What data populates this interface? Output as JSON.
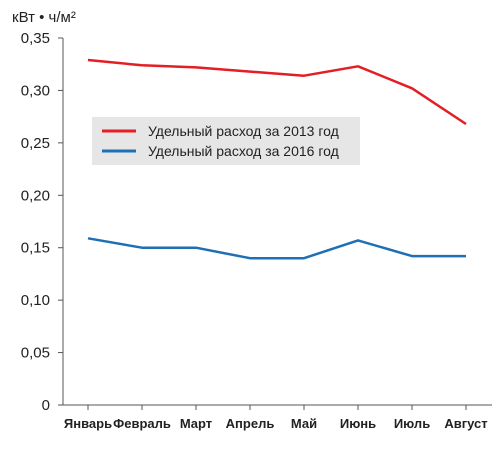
{
  "chart_data": {
    "type": "line",
    "title": "",
    "ylabel": "кВт • ч/м²",
    "xlabel": "",
    "categories": [
      "Январь",
      "Февраль",
      "Март",
      "Апрель",
      "Май",
      "Июнь",
      "Июль",
      "Август"
    ],
    "ylim": [
      0,
      0.35
    ],
    "yticks": [
      "0",
      "0,05",
      "0,10",
      "0,15",
      "0,20",
      "0,25",
      "0,30",
      "0,35"
    ],
    "grid": false,
    "legend": "upper-left",
    "series": [
      {
        "name": "Удельный расход за 2013 год",
        "color": "#e31e24",
        "values": [
          0.329,
          0.324,
          0.322,
          0.318,
          0.314,
          0.323,
          0.302,
          0.268
        ]
      },
      {
        "name": "Удельный расход за 2016 год",
        "color": "#1f6fb5",
        "values": [
          0.159,
          0.15,
          0.15,
          0.14,
          0.14,
          0.157,
          0.142,
          0.142
        ]
      }
    ]
  }
}
